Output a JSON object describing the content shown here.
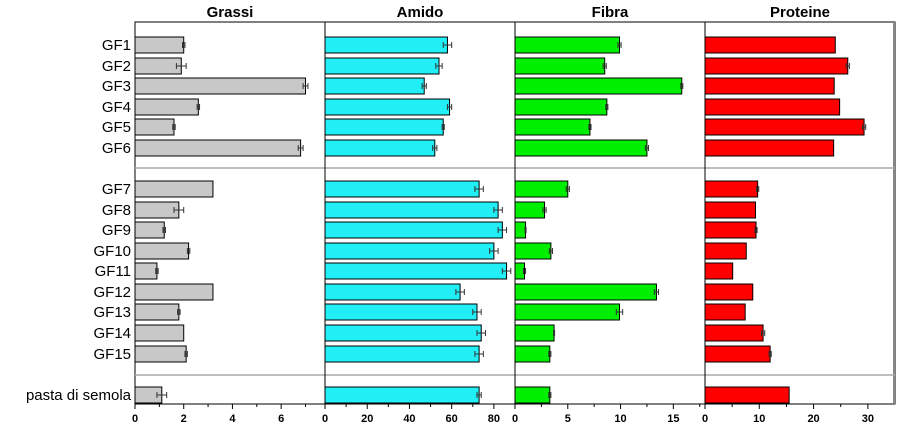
{
  "chart_data": {
    "type": "bar",
    "orientation": "horizontal",
    "categories": [
      "GF1",
      "GF2",
      "GF3",
      "GF4",
      "GF5",
      "GF6",
      "GF7",
      "GF8",
      "GF9",
      "GF10",
      "GF11",
      "GF12",
      "GF13",
      "GF14",
      "GF15",
      "pasta di semola"
    ],
    "groups": [
      {
        "members": [
          "GF1",
          "GF2",
          "GF3",
          "GF4",
          "GF5",
          "GF6"
        ]
      },
      {
        "members": [
          "GF7",
          "GF8",
          "GF9",
          "GF10",
          "GF11",
          "GF12",
          "GF13",
          "GF14",
          "GF15"
        ]
      },
      {
        "members": [
          "pasta di semola"
        ]
      }
    ],
    "series": [
      {
        "name": "Grassi",
        "color": "#c8c8c8",
        "xlim": [
          0,
          7.8
        ],
        "ticks": [
          0,
          2,
          4,
          6
        ],
        "values": [
          2.0,
          1.9,
          7.0,
          2.6,
          1.6,
          6.8,
          3.2,
          1.8,
          1.2,
          2.2,
          0.9,
          3.2,
          1.8,
          2.0,
          2.1,
          1.1
        ],
        "errors": [
          0.05,
          0.2,
          0.1,
          0.05,
          0.05,
          0.1,
          0.0,
          0.2,
          0.05,
          0.05,
          0.05,
          0.0,
          0.05,
          0.0,
          0.05,
          0.2
        ]
      },
      {
        "name": "Amido",
        "color": "#22eef5",
        "xlim": [
          0,
          90
        ],
        "ticks": [
          0,
          20,
          40,
          60,
          80
        ],
        "values": [
          58,
          54,
          47,
          59,
          56,
          52,
          73,
          82,
          84,
          80,
          86,
          64,
          72,
          74,
          73,
          73
        ],
        "errors": [
          2,
          1.5,
          1,
          1,
          0.5,
          1,
          2,
          2,
          2,
          2,
          2,
          2,
          2,
          2,
          2,
          1
        ]
      },
      {
        "name": "Fibra",
        "color": "#00ee00",
        "xlim": [
          0,
          18
        ],
        "ticks": [
          0,
          5,
          10,
          15
        ],
        "values": [
          9.9,
          8.5,
          15.8,
          8.7,
          7.1,
          12.5,
          5.0,
          2.8,
          1.0,
          3.4,
          0.9,
          13.4,
          9.9,
          3.7,
          3.3,
          3.3
        ],
        "errors": [
          0.15,
          0.15,
          0.1,
          0.1,
          0.1,
          0.15,
          0.15,
          0.15,
          0.05,
          0.15,
          0.1,
          0.2,
          0.3,
          0.05,
          0.1,
          0.1
        ]
      },
      {
        "name": "Proteine",
        "color": "#ff0000",
        "xlim": [
          0,
          35
        ],
        "ticks": [
          0,
          10,
          20,
          30
        ],
        "values": [
          24,
          26.3,
          23.8,
          24.8,
          29.3,
          23.7,
          9.7,
          9.3,
          9.4,
          7.6,
          5.1,
          8.8,
          7.4,
          10.7,
          12.0,
          15.5
        ],
        "errors": [
          0,
          0.3,
          0,
          0,
          0.3,
          0,
          0.2,
          0,
          0.2,
          0,
          0,
          0,
          0,
          0.3,
          0.2,
          0
        ]
      }
    ]
  }
}
